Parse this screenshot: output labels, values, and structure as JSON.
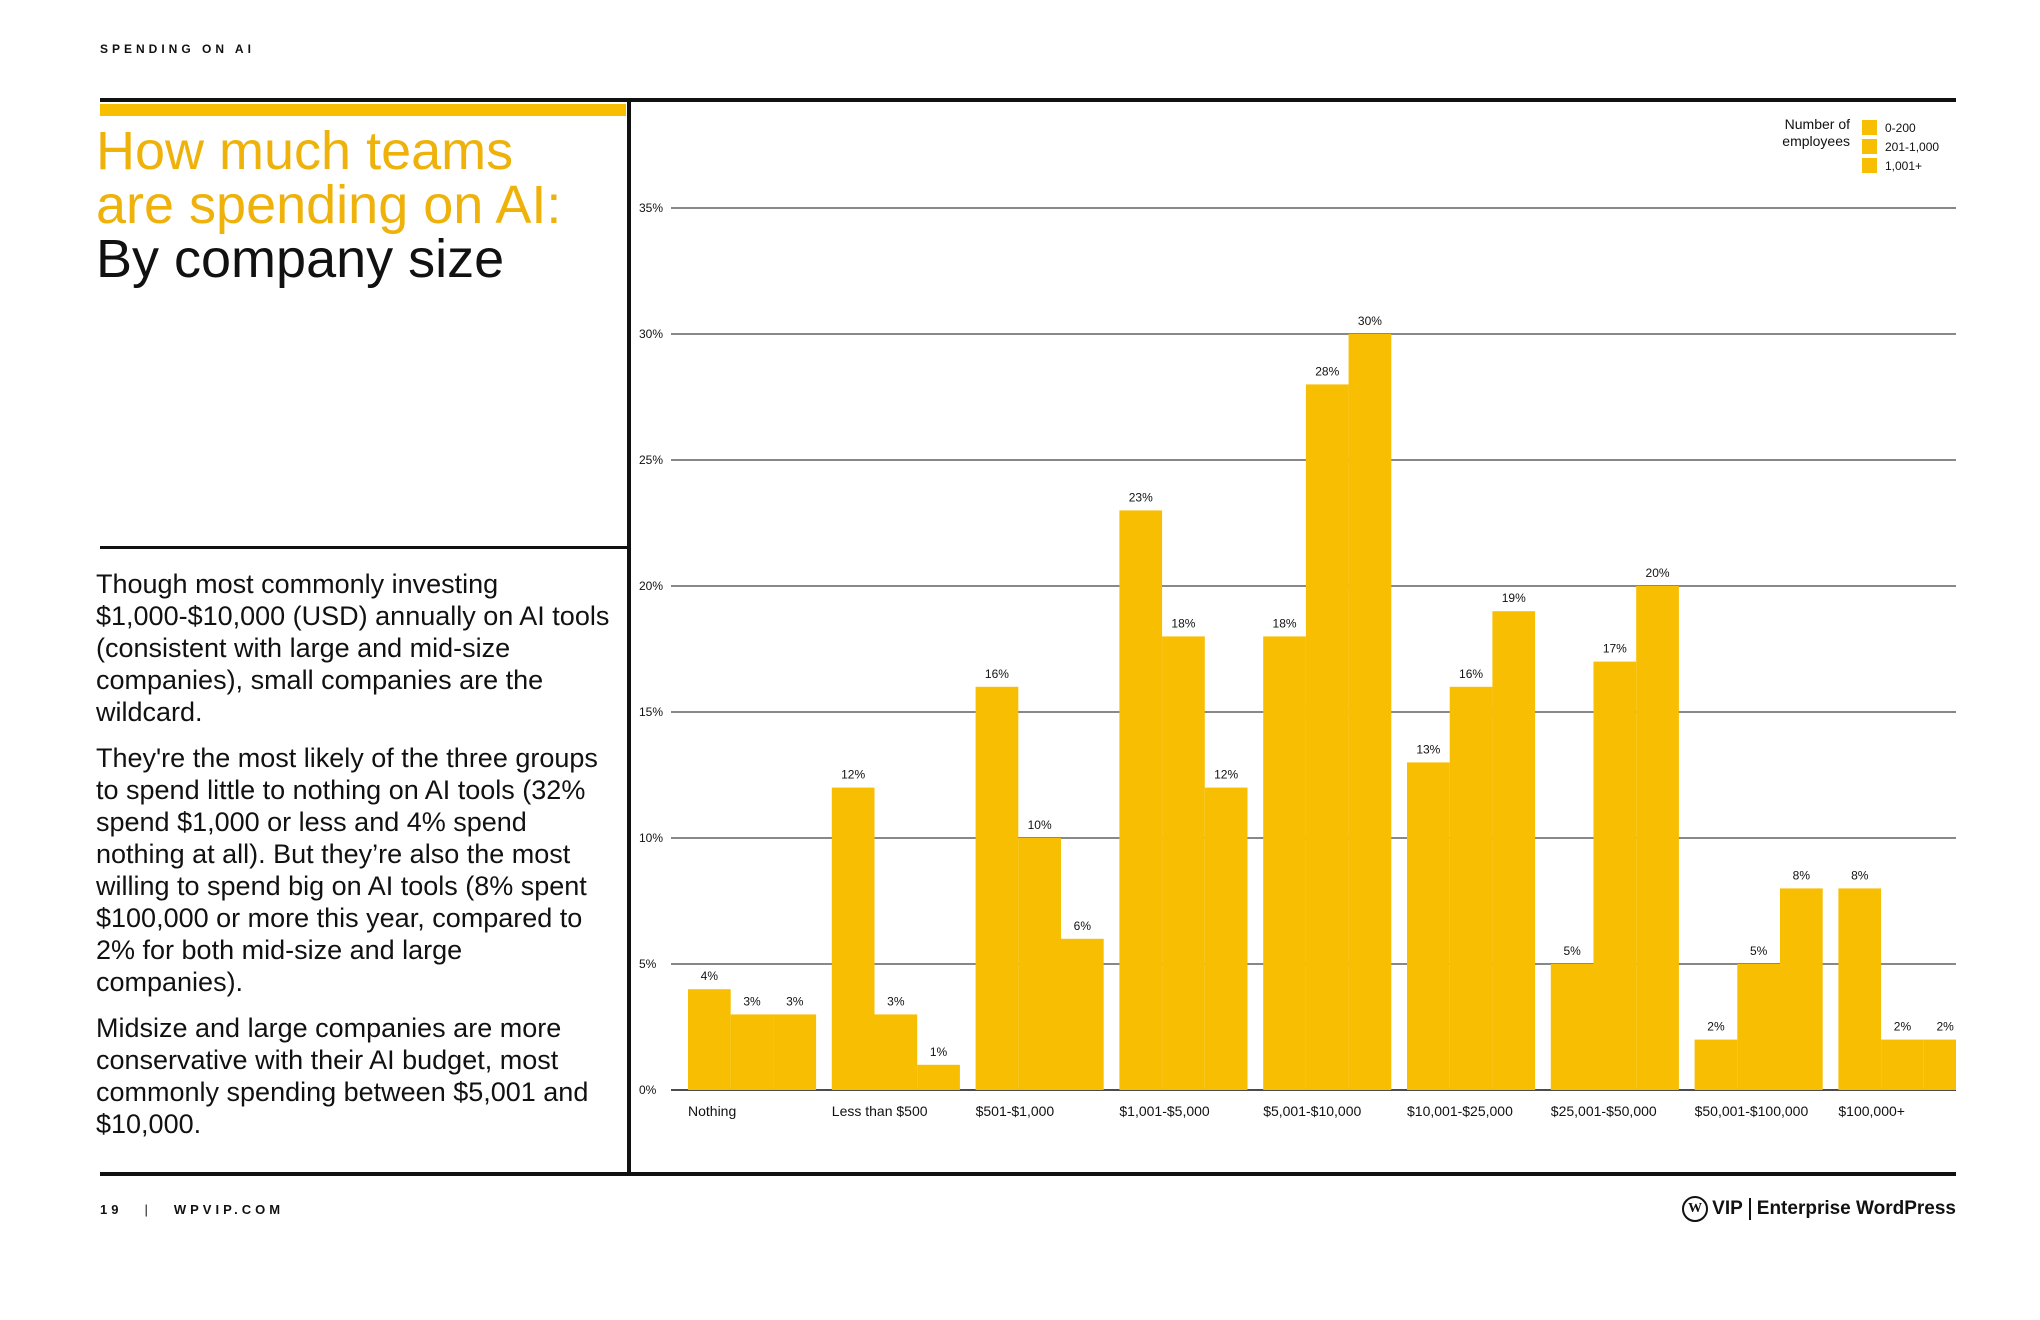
{
  "header": {
    "kicker": "SPENDING ON AI"
  },
  "title": {
    "line1": "How much teams",
    "line2": "are spending on AI:",
    "line3": "By company size"
  },
  "body": {
    "p1": "Though most commonly investing $1,000-$10,000 (USD) annually on AI tools (consistent with large and mid-size companies), small companies are the wildcard.",
    "p2": "They're the most likely of the three groups to spend little to nothing on AI tools (32% spend $1,000 or less and 4% spend nothing at all). But they’re also the most willing to spend big on AI tools (8% spent $100,000 or more this year, compared to 2% for both mid-size and large companies).",
    "p3": "Midsize and large companies are more conservative with their AI budget, most commonly spending between $5,001 and $10,000."
  },
  "footer": {
    "page": "19",
    "separator": "|",
    "site": "WPVIP.COM",
    "brand_badge": "W",
    "brand_vip": "VIP",
    "brand_name": "Enterprise WordPress"
  },
  "legend": {
    "title": "Number of employees",
    "title_line1": "Number of",
    "title_line2": "employees",
    "items": [
      "0-200",
      "201-1,000",
      "1,001+"
    ]
  },
  "colors": {
    "bar": "#f8be02",
    "title_accent": "#eeb20a",
    "text": "#111111"
  },
  "chart_data": {
    "type": "bar",
    "title": "How much teams are spending on AI: By company size",
    "xlabel": "",
    "ylabel": "",
    "ylim": [
      0,
      35
    ],
    "yticks": [
      0,
      5,
      10,
      15,
      20,
      25,
      30,
      35
    ],
    "ytick_labels": [
      "0%",
      "5%",
      "10%",
      "15%",
      "20%",
      "25%",
      "30%",
      "35%"
    ],
    "grid": true,
    "legend_position": "top-right",
    "categories": [
      "Nothing",
      "Less than $500",
      "$501-$1,000",
      "$1,001-$5,000",
      "$5,001-$10,000",
      "$10,001-$25,000",
      "$25,001-$50,000",
      "$50,001-$100,000",
      "$100,000+"
    ],
    "series": [
      {
        "name": "0-200",
        "values": [
          4,
          12,
          16,
          23,
          18,
          13,
          5,
          2,
          8
        ]
      },
      {
        "name": "201-1,000",
        "values": [
          3,
          3,
          10,
          18,
          28,
          16,
          17,
          5,
          2
        ]
      },
      {
        "name": "1,001+",
        "values": [
          3,
          1,
          6,
          12,
          30,
          19,
          20,
          8,
          2
        ]
      }
    ],
    "data_labels": [
      [
        "4%",
        "12%",
        "16%",
        "23%",
        "18%",
        "13%",
        "5%",
        "2%",
        "8%"
      ],
      [
        "3%",
        "3%",
        "10%",
        "18%",
        "28%",
        "16%",
        "17%",
        "5%",
        "2%"
      ],
      [
        "3%",
        "1%",
        "6%",
        "12%",
        "30%",
        "19%",
        "20%",
        "8%",
        "2%"
      ]
    ]
  }
}
